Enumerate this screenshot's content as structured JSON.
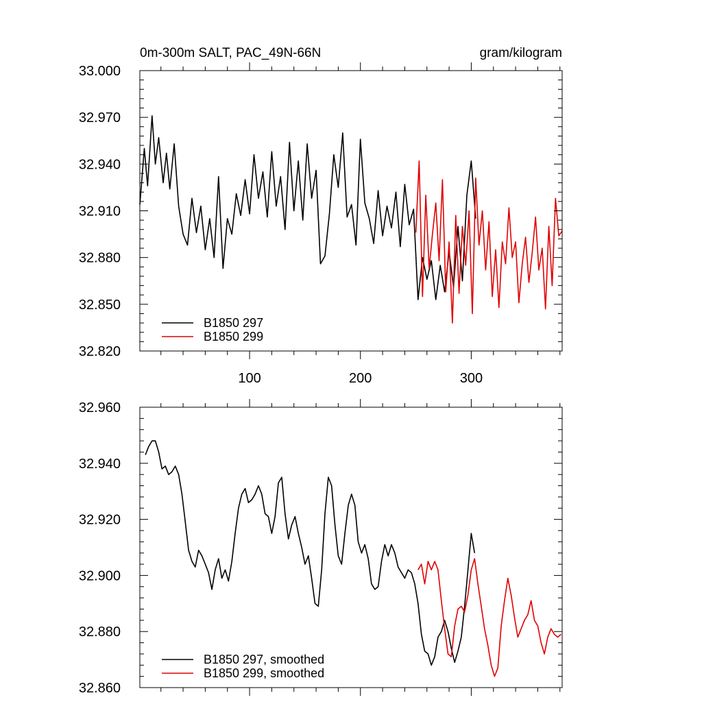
{
  "chart_data": [
    {
      "type": "line",
      "title": "0m-300m SALT, PAC_49N-66N",
      "units": "gram/kilogram",
      "xlim": [
        1,
        382
      ],
      "ylim": [
        32.82,
        33.0
      ],
      "xticks": [
        100,
        200,
        300
      ],
      "yticks": [
        32.82,
        32.85,
        32.88,
        32.91,
        32.94,
        32.97,
        33.0
      ],
      "ytick_labels": [
        "32.820",
        "32.850",
        "32.880",
        "32.910",
        "32.940",
        "32.970",
        "33.000"
      ],
      "legend_position": "bottom-left",
      "series": [
        {
          "name": "B1850 297",
          "color": "#000000",
          "x": [
            1,
            5,
            8,
            12,
            15,
            18,
            22,
            25,
            28,
            32,
            36,
            40,
            44,
            48,
            52,
            56,
            60,
            64,
            68,
            72,
            76,
            80,
            84,
            88,
            92,
            96,
            100,
            104,
            108,
            112,
            116,
            120,
            124,
            128,
            132,
            136,
            140,
            144,
            148,
            152,
            156,
            160,
            164,
            168,
            172,
            176,
            180,
            184,
            188,
            192,
            196,
            200,
            204,
            208,
            212,
            216,
            220,
            224,
            228,
            232,
            236,
            240,
            244,
            248,
            252,
            256,
            260,
            264,
            268,
            272,
            276,
            280,
            284,
            288,
            292,
            296,
            300,
            304
          ],
          "values": [
            32.914,
            32.95,
            32.926,
            32.971,
            32.94,
            32.957,
            32.928,
            32.947,
            32.924,
            32.953,
            32.913,
            32.895,
            32.888,
            32.918,
            32.896,
            32.913,
            32.885,
            32.905,
            32.88,
            32.932,
            32.873,
            32.905,
            32.895,
            32.921,
            32.907,
            32.93,
            32.908,
            32.946,
            32.918,
            32.935,
            32.906,
            32.948,
            32.913,
            32.932,
            32.898,
            32.954,
            32.91,
            32.942,
            32.904,
            32.953,
            32.918,
            32.936,
            32.876,
            32.881,
            32.908,
            32.946,
            32.925,
            32.96,
            32.906,
            32.914,
            32.888,
            32.956,
            32.915,
            32.905,
            32.889,
            32.923,
            32.894,
            32.913,
            32.899,
            32.922,
            32.887,
            32.927,
            32.901,
            32.911,
            32.853,
            32.88,
            32.866,
            32.878,
            32.853,
            32.875,
            32.858,
            32.884,
            32.861,
            32.9,
            32.865,
            32.92,
            32.942,
            32.905
          ]
        },
        {
          "name": "B1850 299",
          "color": "#e00000",
          "x": [
            250,
            253,
            256,
            259,
            262,
            265,
            268,
            271,
            274,
            277,
            280,
            283,
            286,
            289,
            292,
            295,
            298,
            301,
            304,
            307,
            310,
            313,
            316,
            319,
            322,
            325,
            328,
            331,
            334,
            337,
            340,
            343,
            346,
            349,
            352,
            355,
            358,
            361,
            364,
            367,
            370,
            373,
            376,
            379,
            382
          ],
          "values": [
            32.896,
            32.942,
            32.855,
            32.92,
            32.873,
            32.895,
            32.915,
            32.878,
            32.93,
            32.858,
            32.89,
            32.838,
            32.907,
            32.857,
            32.9,
            32.875,
            32.91,
            32.844,
            32.931,
            32.888,
            32.91,
            32.872,
            32.903,
            32.855,
            32.885,
            32.848,
            32.89,
            32.876,
            32.912,
            32.88,
            32.89,
            32.851,
            32.876,
            32.893,
            32.864,
            32.883,
            32.906,
            32.872,
            32.886,
            32.847,
            32.9,
            32.862,
            32.918,
            32.894,
            32.897
          ]
        }
      ]
    },
    {
      "type": "line",
      "xlim": [
        1,
        382
      ],
      "ylim": [
        32.86,
        32.96
      ],
      "xticks": [
        100,
        200,
        300
      ],
      "yticks": [
        32.86,
        32.88,
        32.9,
        32.92,
        32.94,
        32.96
      ],
      "ytick_labels": [
        "32.860",
        "32.880",
        "32.900",
        "32.920",
        "32.940",
        "32.960"
      ],
      "legend_position": "bottom-left",
      "series": [
        {
          "name": "B1850 297, smoothed",
          "color": "#000000",
          "x": [
            6,
            9,
            12,
            15,
            18,
            21,
            24,
            27,
            30,
            33,
            36,
            39,
            42,
            45,
            48,
            51,
            54,
            57,
            60,
            63,
            66,
            69,
            72,
            75,
            78,
            81,
            84,
            87,
            90,
            93,
            96,
            99,
            102,
            105,
            108,
            111,
            114,
            117,
            120,
            123,
            126,
            129,
            132,
            135,
            138,
            141,
            144,
            147,
            150,
            153,
            156,
            159,
            162,
            165,
            168,
            171,
            174,
            177,
            180,
            183,
            186,
            189,
            192,
            195,
            198,
            201,
            204,
            207,
            210,
            213,
            216,
            219,
            222,
            225,
            228,
            231,
            234,
            237,
            240,
            243,
            246,
            249,
            252,
            255,
            258,
            261,
            264,
            267,
            270,
            273,
            276,
            279,
            282,
            285,
            288,
            291,
            294,
            297,
            300,
            303
          ],
          "values": [
            32.943,
            32.946,
            32.948,
            32.948,
            32.944,
            32.938,
            32.939,
            32.936,
            32.937,
            32.939,
            32.936,
            32.929,
            32.919,
            32.909,
            32.905,
            32.903,
            32.909,
            32.907,
            32.904,
            32.901,
            32.895,
            32.902,
            32.906,
            32.899,
            32.902,
            32.898,
            32.905,
            32.915,
            32.924,
            32.929,
            32.931,
            32.926,
            32.927,
            32.929,
            32.932,
            32.929,
            32.922,
            32.921,
            32.915,
            32.921,
            32.933,
            32.935,
            32.922,
            32.913,
            32.918,
            32.921,
            32.915,
            32.91,
            32.904,
            32.907,
            32.899,
            32.89,
            32.889,
            32.902,
            32.922,
            32.935,
            32.932,
            32.918,
            32.907,
            32.904,
            32.915,
            32.925,
            32.929,
            32.925,
            32.912,
            32.908,
            32.911,
            32.906,
            32.897,
            32.895,
            32.896,
            32.905,
            32.911,
            32.907,
            32.911,
            32.908,
            32.903,
            32.901,
            32.899,
            32.902,
            32.901,
            32.897,
            32.89,
            32.879,
            32.873,
            32.872,
            32.868,
            32.871,
            32.878,
            32.88,
            32.884,
            32.88,
            32.874,
            32.869,
            32.873,
            32.878,
            32.889,
            32.902,
            32.915,
            32.908
          ]
        },
        {
          "name": "B1850 299, smoothed",
          "color": "#e00000",
          "x": [
            252,
            255,
            258,
            261,
            264,
            267,
            270,
            273,
            276,
            279,
            282,
            285,
            288,
            291,
            294,
            297,
            300,
            303,
            306,
            309,
            312,
            315,
            318,
            321,
            324,
            327,
            330,
            333,
            336,
            339,
            342,
            345,
            348,
            351,
            354,
            357,
            360,
            363,
            366,
            369,
            372,
            375,
            378,
            381
          ],
          "values": [
            32.902,
            32.904,
            32.897,
            32.905,
            32.902,
            32.905,
            32.902,
            32.891,
            32.881,
            32.872,
            32.871,
            32.882,
            32.888,
            32.889,
            32.887,
            32.893,
            32.902,
            32.906,
            32.897,
            32.889,
            32.881,
            32.875,
            32.868,
            32.864,
            32.867,
            32.882,
            32.891,
            32.899,
            32.893,
            32.885,
            32.878,
            32.881,
            32.884,
            32.886,
            32.891,
            32.884,
            32.882,
            32.876,
            32.872,
            32.878,
            32.881,
            32.879,
            32.878,
            32.879
          ]
        }
      ]
    }
  ]
}
